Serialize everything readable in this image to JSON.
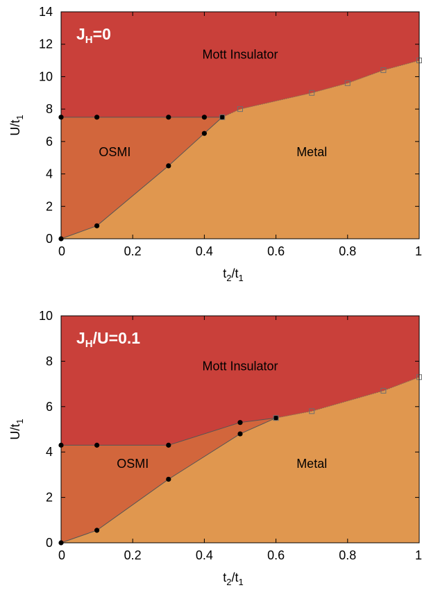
{
  "chart_data": [
    {
      "type": "area",
      "panel_label": "J",
      "panel_label_sub": "H",
      "panel_label_rest": "=0",
      "xlabel_main": "t",
      "xlabel_sub1": "2",
      "xlabel_mid": "/t",
      "xlabel_sub2": "1",
      "ylabel_main": "U/t",
      "ylabel_sub": "1",
      "xlim": [
        0,
        1
      ],
      "ylim": [
        0,
        14
      ],
      "xticks": [
        "0",
        "0.2",
        "0.4",
        "0.6",
        "0.8",
        "1"
      ],
      "xtick_values": [
        0,
        0.2,
        0.4,
        0.6,
        0.8,
        1
      ],
      "yticks": [
        "0",
        "2",
        "4",
        "6",
        "8",
        "10",
        "12",
        "14"
      ],
      "ytick_values": [
        0,
        2,
        4,
        6,
        8,
        10,
        12,
        14
      ],
      "regions": [
        {
          "label": "Mott Insulator",
          "color": "#c9403a",
          "label_pos": [
            0.5,
            11.1
          ]
        },
        {
          "label": "OSMI",
          "color": "#d2663c",
          "label_pos": [
            0.15,
            5.1
          ]
        },
        {
          "label": "Metal",
          "color": "#e0974f",
          "label_pos": [
            0.7,
            5.1
          ]
        }
      ],
      "series": [
        {
          "marker": "filled-circle",
          "points": [
            [
              0,
              7.5
            ],
            [
              0.1,
              7.5
            ],
            [
              0.3,
              7.5
            ],
            [
              0.4,
              7.5
            ],
            [
              0.45,
              7.5
            ]
          ]
        },
        {
          "marker": "filled-circle",
          "points": [
            [
              0,
              0
            ],
            [
              0.1,
              0.8
            ],
            [
              0.3,
              4.5
            ],
            [
              0.4,
              6.5
            ],
            [
              0.45,
              7.5
            ]
          ]
        },
        {
          "marker": "open-square",
          "points": [
            [
              0.45,
              7.5
            ],
            [
              0.5,
              8.0
            ],
            [
              0.7,
              9.0
            ],
            [
              0.8,
              9.6
            ],
            [
              0.9,
              10.4
            ],
            [
              1.0,
              11.0
            ]
          ]
        }
      ]
    },
    {
      "type": "area",
      "panel_label": "J",
      "panel_label_sub": "H",
      "panel_label_rest": "/U=0.1",
      "xlabel_main": "t",
      "xlabel_sub1": "2",
      "xlabel_mid": "/t",
      "xlabel_sub2": "1",
      "ylabel_main": "U/t",
      "ylabel_sub": "1",
      "xlim": [
        0,
        1
      ],
      "ylim": [
        0,
        10
      ],
      "xticks": [
        "0",
        "0.2",
        "0.4",
        "0.6",
        "0.8",
        "1"
      ],
      "xtick_values": [
        0,
        0.2,
        0.4,
        0.6,
        0.8,
        1
      ],
      "yticks": [
        "0",
        "2",
        "4",
        "6",
        "8",
        "10"
      ],
      "ytick_values": [
        0,
        2,
        4,
        6,
        8,
        10
      ],
      "regions": [
        {
          "label": "Mott Insulator",
          "color": "#c9403a",
          "label_pos": [
            0.5,
            7.6
          ]
        },
        {
          "label": "OSMI",
          "color": "#d2663c",
          "label_pos": [
            0.2,
            3.3
          ]
        },
        {
          "label": "Metal",
          "color": "#e0974f",
          "label_pos": [
            0.7,
            3.3
          ]
        }
      ],
      "series": [
        {
          "marker": "filled-circle",
          "points": [
            [
              0,
              4.3
            ],
            [
              0.1,
              4.3
            ],
            [
              0.3,
              4.3
            ],
            [
              0.5,
              5.3
            ],
            [
              0.6,
              5.5
            ]
          ]
        },
        {
          "marker": "filled-circle",
          "points": [
            [
              0,
              0
            ],
            [
              0.1,
              0.55
            ],
            [
              0.3,
              2.8
            ],
            [
              0.5,
              4.8
            ],
            [
              0.6,
              5.5
            ]
          ]
        },
        {
          "marker": "open-square",
          "points": [
            [
              0.6,
              5.5
            ],
            [
              0.7,
              5.8
            ],
            [
              0.9,
              6.7
            ],
            [
              1.0,
              7.3
            ]
          ]
        }
      ]
    }
  ]
}
